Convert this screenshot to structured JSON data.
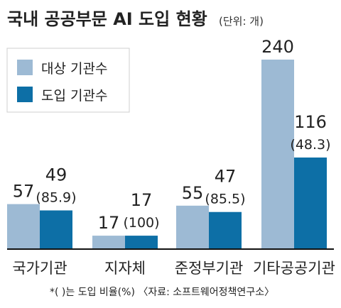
{
  "chart_data": {
    "type": "bar",
    "title": "국내 공공부문 AI 도입 현황",
    "unit": "(단위: 개)",
    "categories": [
      "국가기관",
      "지자체",
      "준정부기관",
      "기타공공기관"
    ],
    "series": [
      {
        "name": "대상 기관수",
        "values": [
          57,
          17,
          55,
          240
        ]
      },
      {
        "name": "도입 기관수",
        "values": [
          49,
          17,
          47,
          116
        ]
      }
    ],
    "value_labels": [
      {
        "target": "57",
        "adopt": "49",
        "ratio": "(85.9)"
      },
      {
        "target": "17",
        "adopt": "17",
        "ratio": "(100)"
      },
      {
        "target": "55",
        "adopt": "47",
        "ratio": "(85.5)"
      },
      {
        "target": "240",
        "adopt": "116",
        "ratio": "(48.3)"
      }
    ],
    "legend_position": "top-left",
    "grid": false
  },
  "colors": {
    "target": "#9dbad4",
    "adopt": "#0d6fa6",
    "baseline": "#111111",
    "text": "#222222"
  },
  "footnote": "*(  )는 도입 비율(%)  〈자료: 소프트웨어정책연구소〉"
}
